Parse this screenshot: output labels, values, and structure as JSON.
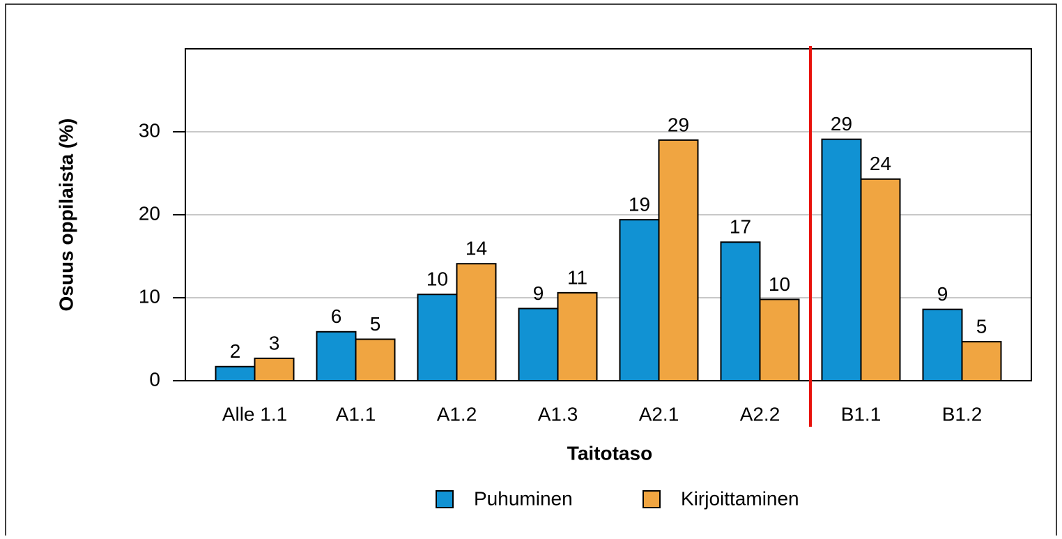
{
  "chart_data": {
    "type": "bar",
    "y_label": "Osuus oppilaista (%)",
    "x_label": "Taitotaso",
    "categories": [
      "Alle 1.1",
      "A1.1",
      "A1.2",
      "A1.3",
      "A2.1",
      "A2.2",
      "B1.1",
      "B1.2"
    ],
    "series": [
      {
        "name": "Puhuminen",
        "color": "#1192d3",
        "values": [
          1.7,
          5.9,
          10.4,
          8.7,
          19.4,
          16.7,
          29.1,
          8.6
        ],
        "value_labels": [
          "2",
          "6",
          "10",
          "9",
          "19",
          "17",
          "29",
          "9"
        ]
      },
      {
        "name": "Kirjoittaminen",
        "color": "#f0a541",
        "values": [
          2.7,
          5.0,
          14.1,
          10.6,
          29.0,
          9.8,
          24.3,
          4.7
        ],
        "value_labels": [
          "3",
          "5",
          "14",
          "11",
          "29",
          "10",
          "24",
          "5"
        ]
      }
    ],
    "ylim": [
      0,
      40
    ],
    "yticks": [
      0,
      10,
      20,
      30
    ],
    "grid": true,
    "legend": "bottom"
  }
}
